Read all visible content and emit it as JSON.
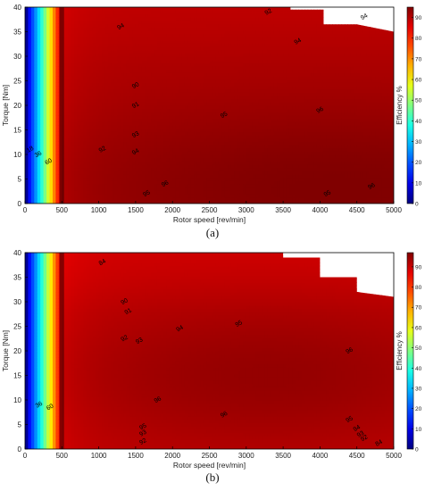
{
  "chart_data": [
    {
      "type": "contour",
      "caption": "(a)",
      "xlabel": "Rotor speed [rev/min]",
      "ylabel": "Torque [Nm]",
      "colorbar_label": "Efficiency %",
      "xlim": [
        0,
        5000
      ],
      "ylim": [
        0,
        40
      ],
      "x_ticks": [
        0,
        500,
        1000,
        1500,
        2000,
        2500,
        3000,
        3500,
        4000,
        4500,
        5000
      ],
      "y_ticks": [
        0,
        5,
        10,
        15,
        20,
        25,
        30,
        35,
        40
      ],
      "colorbar_range": [
        0,
        95
      ],
      "colorbar_ticks": [
        0,
        10,
        20,
        30,
        40,
        50,
        60,
        70,
        80,
        90
      ],
      "colormap": "jet",
      "torque_limit": [
        [
          0,
          40
        ],
        [
          3000,
          40
        ],
        [
          3600,
          40
        ],
        [
          3600,
          39.5
        ],
        [
          4050,
          39.5
        ],
        [
          4050,
          36.5
        ],
        [
          4500,
          36.5
        ],
        [
          5000,
          35
        ]
      ],
      "model": {
        "peak_speed": 4200,
        "peak_torque": 3,
        "speed_width": 4500,
        "torque_width": 20
      },
      "contour_labels": [
        {
          "text": "92",
          "speed": 3300,
          "torque": 39
        },
        {
          "text": "94",
          "speed": 4600,
          "torque": 38
        },
        {
          "text": "94",
          "speed": 1300,
          "torque": 36
        },
        {
          "text": "94",
          "speed": 3700,
          "torque": 33
        },
        {
          "text": "90",
          "speed": 1500,
          "torque": 24
        },
        {
          "text": "91",
          "speed": 1500,
          "torque": 20
        },
        {
          "text": "95",
          "speed": 2700,
          "torque": 18
        },
        {
          "text": "96",
          "speed": 4000,
          "torque": 19
        },
        {
          "text": "93",
          "speed": 1500,
          "torque": 14
        },
        {
          "text": "92",
          "speed": 1050,
          "torque": 11
        },
        {
          "text": "94",
          "speed": 1500,
          "torque": 10.5
        },
        {
          "text": "96",
          "speed": 1900,
          "torque": 4
        },
        {
          "text": "96",
          "speed": 4700,
          "torque": 3.5
        },
        {
          "text": "95",
          "speed": 1650,
          "torque": 2
        },
        {
          "text": "95",
          "speed": 4100,
          "torque": 2
        },
        {
          "text": "36",
          "speed": 180,
          "torque": 10
        },
        {
          "text": "60",
          "speed": 320,
          "torque": 8.5
        },
        {
          "text": "18",
          "speed": 70,
          "torque": 11
        }
      ]
    },
    {
      "type": "contour",
      "caption": "(b)",
      "xlabel": "Rotor speed [rev/min]",
      "ylabel": "Torque [Nm]",
      "colorbar_label": "Efficiency %",
      "xlim": [
        0,
        5000
      ],
      "ylim": [
        0,
        40
      ],
      "x_ticks": [
        0,
        500,
        1000,
        1500,
        2000,
        2500,
        3000,
        3500,
        4000,
        4500,
        5000
      ],
      "y_ticks": [
        0,
        5,
        10,
        15,
        20,
        25,
        30,
        35,
        40
      ],
      "colorbar_range": [
        0,
        97
      ],
      "colorbar_ticks": [
        0,
        10,
        20,
        30,
        40,
        50,
        60,
        70,
        80,
        90
      ],
      "colormap": "jet",
      "torque_limit": [
        [
          0,
          40
        ],
        [
          3500,
          40
        ],
        [
          3500,
          39
        ],
        [
          4000,
          39
        ],
        [
          4000,
          35
        ],
        [
          4500,
          35
        ],
        [
          4500,
          32
        ],
        [
          5000,
          31
        ]
      ],
      "model": {
        "peak_speed": 3300,
        "peak_torque": 15,
        "speed_width": 3300,
        "torque_width": 17
      },
      "contour_labels": [
        {
          "text": "84",
          "speed": 1050,
          "torque": 38
        },
        {
          "text": "90",
          "speed": 1350,
          "torque": 30
        },
        {
          "text": "91",
          "speed": 1400,
          "torque": 28
        },
        {
          "text": "92",
          "speed": 1350,
          "torque": 22.5
        },
        {
          "text": "93",
          "speed": 1550,
          "torque": 22
        },
        {
          "text": "94",
          "speed": 2100,
          "torque": 24.5
        },
        {
          "text": "95",
          "speed": 2900,
          "torque": 25.5
        },
        {
          "text": "96",
          "speed": 4400,
          "torque": 20
        },
        {
          "text": "96",
          "speed": 1800,
          "torque": 10
        },
        {
          "text": "96",
          "speed": 2700,
          "torque": 7
        },
        {
          "text": "95",
          "speed": 1600,
          "torque": 4.5
        },
        {
          "text": "93",
          "speed": 1600,
          "torque": 3.2
        },
        {
          "text": "92",
          "speed": 1600,
          "torque": 1.5
        },
        {
          "text": "95",
          "speed": 4400,
          "torque": 6
        },
        {
          "text": "94",
          "speed": 4500,
          "torque": 4.2
        },
        {
          "text": "93",
          "speed": 4550,
          "torque": 3
        },
        {
          "text": "92",
          "speed": 4600,
          "torque": 2.2
        },
        {
          "text": "84",
          "speed": 4800,
          "torque": 1.2
        },
        {
          "text": "36",
          "speed": 190,
          "torque": 9
        },
        {
          "text": "60",
          "speed": 340,
          "torque": 8.5
        }
      ]
    }
  ]
}
